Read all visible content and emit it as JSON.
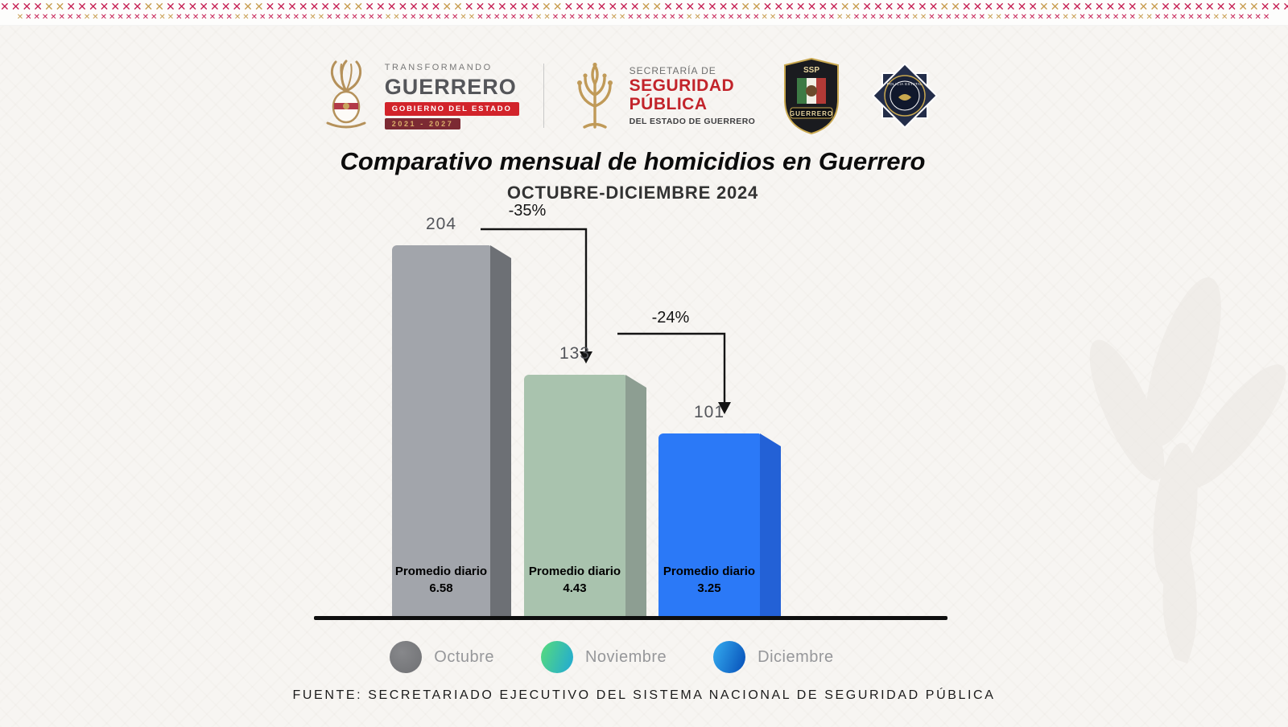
{
  "border_colors": {
    "red": "#c51f53",
    "gold": "#c79c4e"
  },
  "header": {
    "gob": {
      "transformando": "TRANSFORMANDO",
      "guerrero": "GUERRERO",
      "gobierno": "GOBIERNO DEL ESTADO",
      "period": "2021 - 2027"
    },
    "ssp": {
      "secretaria": "SECRETARÍA DE",
      "seguridad": "SEGURIDAD",
      "publica": "PÚBLICA",
      "estado": "DEL ESTADO DE GUERRERO"
    },
    "shield": {
      "top": "SSP",
      "banner": "GUERRERO"
    },
    "star": {
      "label": "POLICÍA ESTATAL"
    }
  },
  "chart_data": {
    "type": "bar",
    "title": "Comparativo mensual de homicidios en Guerrero",
    "subtitle": "OCTUBRE-DICIEMBRE 2024",
    "categories": [
      "Octubre",
      "Noviembre",
      "Diciembre"
    ],
    "values": [
      204,
      133,
      101
    ],
    "ylim": [
      0,
      220
    ],
    "grid": false,
    "legend_position": "bottom",
    "bars": [
      {
        "month": "Octubre",
        "value": 204,
        "avg_label": "Promedio diario",
        "avg": "6.58",
        "front": "#a2a5ab",
        "side": "#6d7075"
      },
      {
        "month": "Noviembre",
        "value": 133,
        "avg_label": "Promedio diario",
        "avg": "4.43",
        "front": "#a9c3ae",
        "side": "#8d9e92"
      },
      {
        "month": "Diciembre",
        "value": 101,
        "avg_label": "Promedio diario",
        "avg": "3.25",
        "front": "#2b79f7",
        "side": "#2361d6"
      }
    ],
    "changes": [
      {
        "label": "-35%",
        "from": "Octubre",
        "to": "Noviembre"
      },
      {
        "label": "-24%",
        "from": "Noviembre",
        "to": "Diciembre"
      }
    ],
    "legend": [
      {
        "label": "Octubre",
        "color": "#87888b"
      },
      {
        "label": "Noviembre",
        "color_start": "#4fd488",
        "color_end": "#28b0c9"
      },
      {
        "label": "Diciembre",
        "color_start": "#2e9fe8",
        "color_end": "#0d5cc0"
      }
    ]
  },
  "footer": {
    "source": "FUENTE: SECRETARIADO EJECUTIVO DEL SISTEMA NACIONAL DE SEGURIDAD PÚBLICA"
  }
}
